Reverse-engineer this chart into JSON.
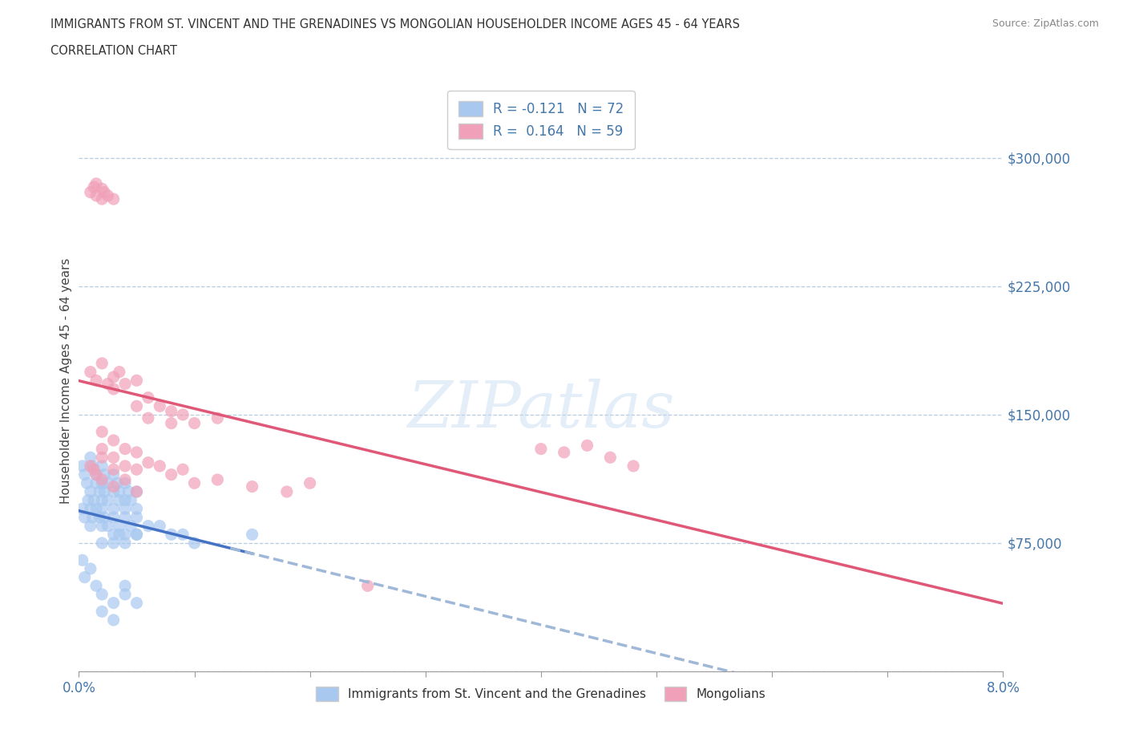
{
  "title_line1": "IMMIGRANTS FROM ST. VINCENT AND THE GRENADINES VS MONGOLIAN HOUSEHOLDER INCOME AGES 45 - 64 YEARS",
  "title_line2": "CORRELATION CHART",
  "source": "Source: ZipAtlas.com",
  "ylabel": "Householder Income Ages 45 - 64 years",
  "xlim": [
    0.0,
    0.08
  ],
  "ylim": [
    0,
    340000
  ],
  "r_blue": -0.121,
  "n_blue": 72,
  "r_pink": 0.164,
  "n_pink": 59,
  "color_blue": "#a8c8f0",
  "color_pink": "#f0a0b8",
  "line_blue_solid": "#4472c4",
  "line_pink_solid": "#e05878",
  "line_blue_dash": "#a0b8d8",
  "watermark": "ZIPatlas",
  "background_color": "#ffffff",
  "blue_scatter_x": [
    0.0003,
    0.0005,
    0.0007,
    0.001,
    0.001,
    0.0012,
    0.0013,
    0.0015,
    0.0015,
    0.0018,
    0.002,
    0.002,
    0.002,
    0.0022,
    0.0022,
    0.0025,
    0.0025,
    0.003,
    0.003,
    0.003,
    0.0033,
    0.0035,
    0.0035,
    0.004,
    0.004,
    0.004,
    0.0043,
    0.0045,
    0.005,
    0.005,
    0.0003,
    0.0005,
    0.0008,
    0.001,
    0.001,
    0.0012,
    0.0015,
    0.0018,
    0.002,
    0.002,
    0.0022,
    0.0025,
    0.003,
    0.003,
    0.0035,
    0.004,
    0.004,
    0.0045,
    0.005,
    0.005,
    0.003,
    0.0035,
    0.004,
    0.005,
    0.006,
    0.007,
    0.008,
    0.009,
    0.01,
    0.015,
    0.0003,
    0.0005,
    0.001,
    0.0015,
    0.002,
    0.002,
    0.003,
    0.003,
    0.004,
    0.004,
    0.002,
    0.005
  ],
  "blue_scatter_y": [
    120000,
    115000,
    110000,
    125000,
    105000,
    120000,
    100000,
    115000,
    110000,
    105000,
    120000,
    110000,
    100000,
    115000,
    105000,
    110000,
    100000,
    115000,
    105000,
    95000,
    110000,
    100000,
    105000,
    110000,
    100000,
    95000,
    105000,
    100000,
    105000,
    95000,
    95000,
    90000,
    100000,
    95000,
    85000,
    90000,
    95000,
    90000,
    85000,
    95000,
    90000,
    85000,
    80000,
    90000,
    85000,
    80000,
    90000,
    85000,
    80000,
    90000,
    75000,
    80000,
    75000,
    80000,
    85000,
    85000,
    80000,
    80000,
    75000,
    80000,
    65000,
    55000,
    60000,
    50000,
    45000,
    35000,
    30000,
    40000,
    50000,
    45000,
    75000,
    40000
  ],
  "pink_scatter_x": [
    0.001,
    0.0013,
    0.0015,
    0.0015,
    0.002,
    0.002,
    0.0022,
    0.0025,
    0.003,
    0.001,
    0.0015,
    0.002,
    0.0025,
    0.003,
    0.003,
    0.0035,
    0.004,
    0.005,
    0.005,
    0.006,
    0.006,
    0.007,
    0.008,
    0.008,
    0.009,
    0.01,
    0.012,
    0.002,
    0.002,
    0.003,
    0.003,
    0.004,
    0.004,
    0.005,
    0.005,
    0.006,
    0.007,
    0.008,
    0.009,
    0.01,
    0.012,
    0.015,
    0.018,
    0.02,
    0.025,
    0.001,
    0.0013,
    0.0015,
    0.002,
    0.002,
    0.003,
    0.003,
    0.004,
    0.005,
    0.04,
    0.042,
    0.044,
    0.046,
    0.048
  ],
  "pink_scatter_y": [
    280000,
    283000,
    285000,
    278000,
    282000,
    276000,
    280000,
    278000,
    276000,
    175000,
    170000,
    180000,
    168000,
    172000,
    165000,
    175000,
    168000,
    170000,
    155000,
    160000,
    148000,
    155000,
    152000,
    145000,
    150000,
    145000,
    148000,
    140000,
    130000,
    135000,
    125000,
    130000,
    120000,
    128000,
    118000,
    122000,
    120000,
    115000,
    118000,
    110000,
    112000,
    108000,
    105000,
    110000,
    50000,
    120000,
    118000,
    115000,
    125000,
    112000,
    118000,
    108000,
    112000,
    105000,
    130000,
    128000,
    132000,
    125000,
    120000
  ]
}
